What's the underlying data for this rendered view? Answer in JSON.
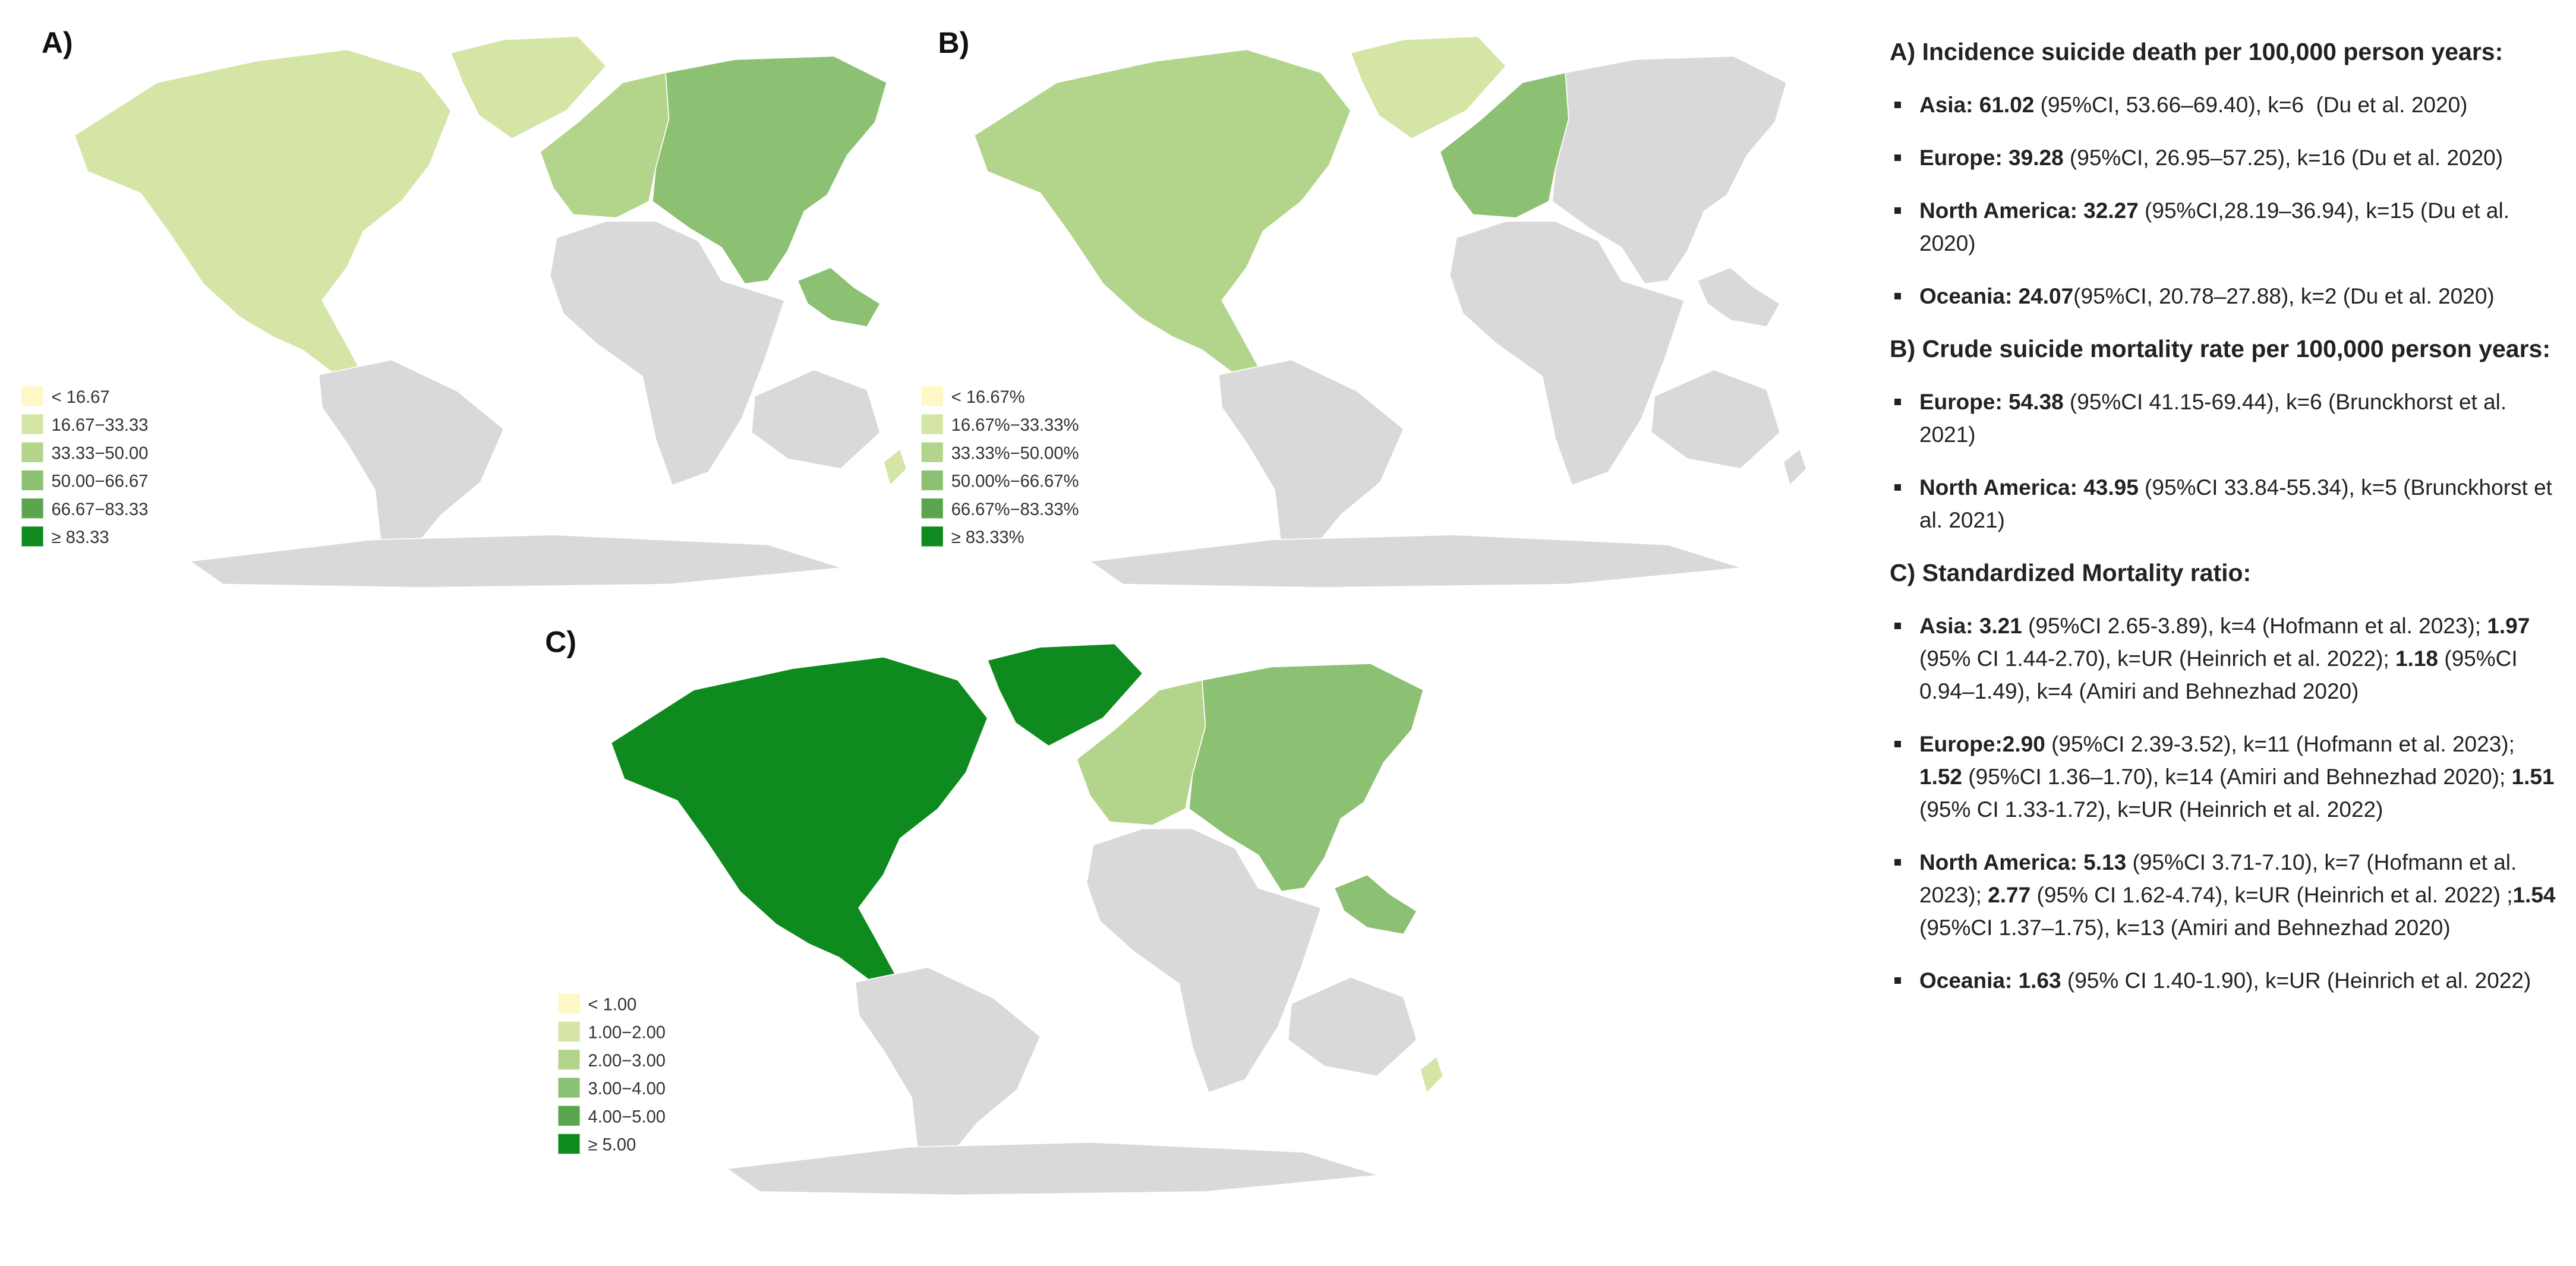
{
  "panels": [
    {
      "label": "A)",
      "legend": [
        {
          "label": "< 16.67",
          "color": "#fdf8c6"
        },
        {
          "label": "16.67−33.33",
          "color": "#d4e5a5"
        },
        {
          "label": "33.33−50.00",
          "color": "#b3d58b"
        },
        {
          "label": "50.00−66.67",
          "color": "#8cc072"
        },
        {
          "label": "66.67−83.33",
          "color": "#5aa54e"
        },
        {
          "label": "≥ 83.33",
          "color": "#0e8a1e"
        }
      ]
    },
    {
      "label": "B)",
      "legend": [
        {
          "label": "< 16.67%",
          "color": "#fdf8c6"
        },
        {
          "label": "16.67%−33.33%",
          "color": "#d4e5a5"
        },
        {
          "label": "33.33%−50.00%",
          "color": "#b3d58b"
        },
        {
          "label": "50.00%−66.67%",
          "color": "#8cc072"
        },
        {
          "label": "66.67%−83.33%",
          "color": "#5aa54e"
        },
        {
          "label": "≥ 83.33%",
          "color": "#0e8a1e"
        }
      ]
    },
    {
      "label": "C)",
      "legend": [
        {
          "label": "< 1.00",
          "color": "#fdf8c6"
        },
        {
          "label": "1.00−2.00",
          "color": "#d4e5a5"
        },
        {
          "label": "2.00−3.00",
          "color": "#b3d58b"
        },
        {
          "label": "3.00−4.00",
          "color": "#8cc072"
        },
        {
          "label": "4.00−5.00",
          "color": "#5aa54e"
        },
        {
          "label": "≥ 5.00",
          "color": "#0e8a1e"
        }
      ]
    }
  ],
  "notes": [
    {
      "heading": "A) Incidence suicide death per 100,000 person years:",
      "items": [
        [
          {
            "bold": "Asia: 61.02"
          },
          {
            "text": " (95%CI, 53.66–69.40), k=6  (Du et al. 2020)"
          }
        ],
        [
          {
            "bold": "Europe: 39.28"
          },
          {
            "text": " (95%CI, 26.95–57.25), k=16 (Du et al. 2020)"
          }
        ],
        [
          {
            "bold": "North America: 32.27"
          },
          {
            "text": " (95%CI,28.19–36.94), k=15 (Du et al. 2020)"
          }
        ],
        [
          {
            "bold": "Oceania: 24.07"
          },
          {
            "text": "(95%CI, 20.78–27.88), k=2 (Du et al. 2020)"
          }
        ]
      ]
    },
    {
      "heading": "B) Crude suicide mortality rate per 100,000 person years:",
      "items": [
        [
          {
            "bold": "Europe: 54.38"
          },
          {
            "text": " (95%CI 41.15-69.44), k=6 (Brunckhorst et al. 2021)"
          }
        ],
        [
          {
            "bold": "North America: 43.95"
          },
          {
            "text": " (95%CI 33.84-55.34), k=5 (Brunckhorst et al. 2021)"
          }
        ]
      ]
    },
    {
      "heading": "C) Standardized Mortality ratio:",
      "items": [
        [
          {
            "bold": "Asia: 3.21"
          },
          {
            "text": " (95%CI 2.65-3.89), k=4 (Hofmann et al. 2023); "
          },
          {
            "bold": "1.97"
          },
          {
            "text": " (95% CI 1.44-2.70), k=UR (Heinrich et al. 2022); "
          },
          {
            "bold": "1.18"
          },
          {
            "text": " (95%CI 0.94–1.49), k=4 (Amiri and Behnezhad 2020)"
          }
        ],
        [
          {
            "bold": "Europe:2.90"
          },
          {
            "text": " (95%CI 2.39-3.52), k=11 (Hofmann et al. 2023); "
          },
          {
            "bold": "1.52"
          },
          {
            "text": " (95%CI 1.36–1.70), k=14 (Amiri and Behnezhad 2020); "
          },
          {
            "bold": "1.51"
          },
          {
            "text": " (95% CI 1.33-1.72), k=UR (Heinrich et al. 2022)"
          }
        ],
        [
          {
            "bold": "North America: 5.13"
          },
          {
            "text": " (95%CI 3.71-7.10), k=7 (Hofmann et al. 2023); "
          },
          {
            "bold": "2.77"
          },
          {
            "text": " (95% CI 1.62-4.74), k=UR (Heinrich et al. 2022) ;"
          },
          {
            "bold": "1.54"
          },
          {
            "text": " (95%CI 1.37–1.75), k=13 (Amiri and Behnezhad 2020)"
          }
        ],
        [
          {
            "bold": "Oceania: 1.63"
          },
          {
            "text": " (95% CI 1.40-1.90), k=UR (Heinrich et al. 2022)"
          }
        ]
      ]
    }
  ]
}
